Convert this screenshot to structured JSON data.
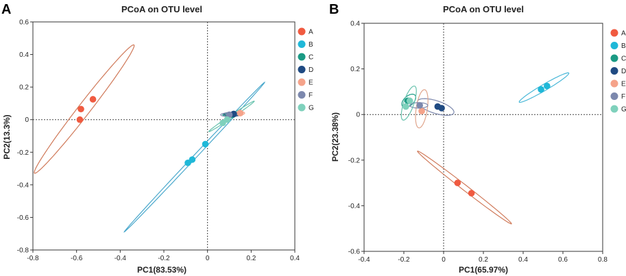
{
  "chart_data": [
    {
      "type": "scatter",
      "panel": "A",
      "title": "PCoA on OTU level",
      "xlabel": "PC1(83.53%)",
      "ylabel": "PC2(13.3%)",
      "xlim": [
        -0.8,
        0.4
      ],
      "ylim": [
        -0.8,
        0.6
      ],
      "xticks": [
        -0.8,
        -0.6,
        -0.4,
        -0.2,
        0,
        0.2,
        0.4
      ],
      "yticks": [
        -0.8,
        -0.6,
        -0.4,
        -0.2,
        0,
        0.2,
        0.4,
        0.6
      ],
      "xtick_labels": [
        "-0.8",
        "-0.6",
        "-0.4",
        "-0.2",
        "0",
        "0.2",
        "0.4"
      ],
      "ytick_labels": [
        "-0.8",
        "-0.6",
        "-0.4",
        "-0.2",
        "0",
        "0.2",
        "0.4",
        "0.6"
      ],
      "series": [
        {
          "name": "A",
          "color": "#f05a40",
          "points": [
            [
              -0.58,
              0.065
            ],
            [
              -0.525,
              0.125
            ],
            [
              -0.585,
              0.0
            ]
          ],
          "ellipse": {
            "cx": -0.565,
            "cy": 0.065,
            "rx": 0.455,
            "ry": 0.03,
            "angle_deg": 60,
            "color": "#d07a5a"
          }
        },
        {
          "name": "B",
          "color": "#1fb8d8",
          "points": [
            [
              -0.01,
              -0.15
            ],
            [
              -0.07,
              -0.245
            ],
            [
              -0.09,
              -0.265
            ]
          ],
          "ellipse": {
            "cx": -0.06,
            "cy": -0.23,
            "rx": 0.56,
            "ry": 0.008,
            "angle_deg": 55,
            "color": "#4aa8cc"
          }
        },
        {
          "name": "C",
          "color": "#1a9a84",
          "points": [
            [
              0.115,
              0.03
            ]
          ],
          "ellipse": {
            "cx": 0.11,
            "cy": 0.03,
            "rx": 0.04,
            "ry": 0.008,
            "angle_deg": 0,
            "color": "#1a9a84"
          }
        },
        {
          "name": "D",
          "color": "#1f4a82",
          "points": [
            [
              0.12,
              0.035
            ]
          ],
          "ellipse": {
            "cx": 0.115,
            "cy": 0.035,
            "rx": 0.04,
            "ry": 0.01,
            "angle_deg": 0,
            "color": "#334e7a"
          }
        },
        {
          "name": "E",
          "color": "#f5a38a",
          "points": [
            [
              0.15,
              0.04
            ]
          ],
          "ellipse": {
            "cx": 0.15,
            "cy": 0.04,
            "rx": 0.02,
            "ry": 0.01,
            "angle_deg": 0,
            "color": "#f5a38a"
          }
        },
        {
          "name": "F",
          "color": "#7c88ad",
          "points": [
            [
              0.1,
              0.03
            ]
          ],
          "ellipse": {
            "cx": 0.105,
            "cy": 0.03,
            "rx": 0.045,
            "ry": 0.012,
            "angle_deg": 0,
            "color": "#7c88ad"
          }
        },
        {
          "name": "G",
          "color": "#7fd1bc",
          "points": [
            [
              0.07,
              -0.02
            ],
            [
              0.09,
              0.0
            ]
          ],
          "ellipse": {
            "cx": 0.11,
            "cy": 0.02,
            "rx": 0.14,
            "ry": 0.008,
            "angle_deg": 42,
            "color": "#67c2ad"
          }
        }
      ],
      "legend_position": "right"
    },
    {
      "type": "scatter",
      "panel": "B",
      "title": "PCoA on OTU level",
      "xlabel": "PC1(65.97%)",
      "ylabel": "PC2(23.38%)",
      "xlim": [
        -0.4,
        0.8
      ],
      "ylim": [
        -0.6,
        0.4
      ],
      "xticks": [
        -0.4,
        -0.2,
        0,
        0.2,
        0.4,
        0.6,
        0.8
      ],
      "yticks": [
        -0.6,
        -0.4,
        -0.2,
        0,
        0.2,
        0.4
      ],
      "xtick_labels": [
        "-0.4",
        "-0.2",
        "0",
        "0.2",
        "0.4",
        "0.6",
        "0.8"
      ],
      "ytick_labels": [
        "-0.6",
        "-0.4",
        "-0.2",
        "0",
        "0.2",
        "0.4"
      ],
      "series": [
        {
          "name": "A",
          "color": "#f05a40",
          "points": [
            [
              0.07,
              -0.3
            ],
            [
              0.14,
              -0.345
            ]
          ],
          "ellipse": {
            "cx": 0.105,
            "cy": -0.32,
            "rx": 0.285,
            "ry": 0.012,
            "angle_deg": -34,
            "color": "#d07a5a"
          }
        },
        {
          "name": "B",
          "color": "#1fb8d8",
          "points": [
            [
              0.49,
              0.11
            ],
            [
              0.52,
              0.125
            ]
          ],
          "ellipse": {
            "cx": 0.505,
            "cy": 0.118,
            "rx": 0.14,
            "ry": 0.014,
            "angle_deg": 27,
            "color": "#4ab8d8"
          }
        },
        {
          "name": "C",
          "color": "#1a9a84",
          "points": [
            [
              -0.18,
              0.06
            ]
          ],
          "ellipse": {
            "cx": -0.175,
            "cy": 0.06,
            "rx": 0.04,
            "ry": 0.022,
            "angle_deg": 35,
            "color": "#1a9a84"
          }
        },
        {
          "name": "D",
          "color": "#1f4a82",
          "points": [
            [
              -0.03,
              0.035
            ],
            [
              -0.01,
              0.028
            ]
          ],
          "ellipse": {
            "cx": -0.04,
            "cy": 0.033,
            "rx": 0.095,
            "ry": 0.028,
            "angle_deg": -15,
            "color": "#7c88ad"
          }
        },
        {
          "name": "E",
          "color": "#f5a38a",
          "points": [
            [
              -0.11,
              0.015
            ]
          ],
          "ellipse": {
            "cx": -0.11,
            "cy": 0.025,
            "rx": 0.085,
            "ry": 0.028,
            "angle_deg": 80,
            "color": "#e0a58c"
          }
        },
        {
          "name": "F",
          "color": "#7c88ad",
          "points": [
            [
              -0.12,
              0.04
            ]
          ],
          "ellipse": {
            "cx": -0.125,
            "cy": 0.04,
            "rx": 0.045,
            "ry": 0.012,
            "angle_deg": 0,
            "color": "#7c88ad"
          }
        },
        {
          "name": "G",
          "color": "#7fd1bc",
          "points": [
            [
              -0.19,
              0.035
            ],
            [
              -0.17,
              0.06
            ]
          ],
          "ellipse": {
            "cx": -0.175,
            "cy": 0.05,
            "rx": 0.08,
            "ry": 0.025,
            "angle_deg": 68,
            "color": "#67c2ad"
          }
        }
      ],
      "legend_position": "right"
    }
  ]
}
